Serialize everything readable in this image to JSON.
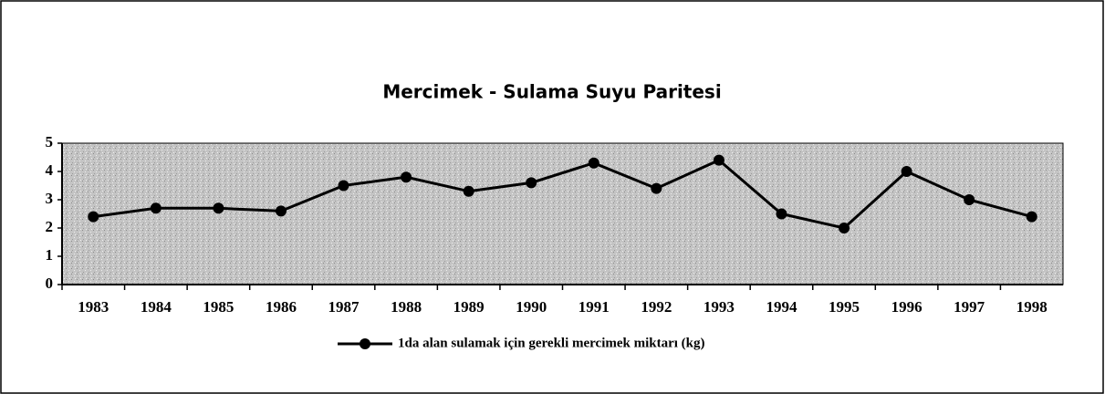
{
  "chart_data": {
    "type": "line",
    "title": "Mercimek - Sulama Suyu Paritesi",
    "categories": [
      "1983",
      "1984",
      "1985",
      "1986",
      "1987",
      "1988",
      "1989",
      "1990",
      "1991",
      "1992",
      "1993",
      "1994",
      "1995",
      "1996",
      "1997",
      "1998"
    ],
    "series": [
      {
        "name": "1da alan sulamak için gerekli mercimek miktarı (kg)",
        "color": "#000000",
        "values": [
          2.4,
          2.7,
          2.7,
          2.6,
          3.5,
          3.8,
          3.3,
          3.6,
          4.3,
          3.4,
          4.4,
          2.5,
          2.0,
          4.0,
          3.0,
          2.4
        ]
      }
    ],
    "ylim": [
      0,
      5
    ],
    "yticks": [
      0,
      1,
      2,
      3,
      4,
      5
    ],
    "grid": false,
    "legend": "bottom"
  }
}
